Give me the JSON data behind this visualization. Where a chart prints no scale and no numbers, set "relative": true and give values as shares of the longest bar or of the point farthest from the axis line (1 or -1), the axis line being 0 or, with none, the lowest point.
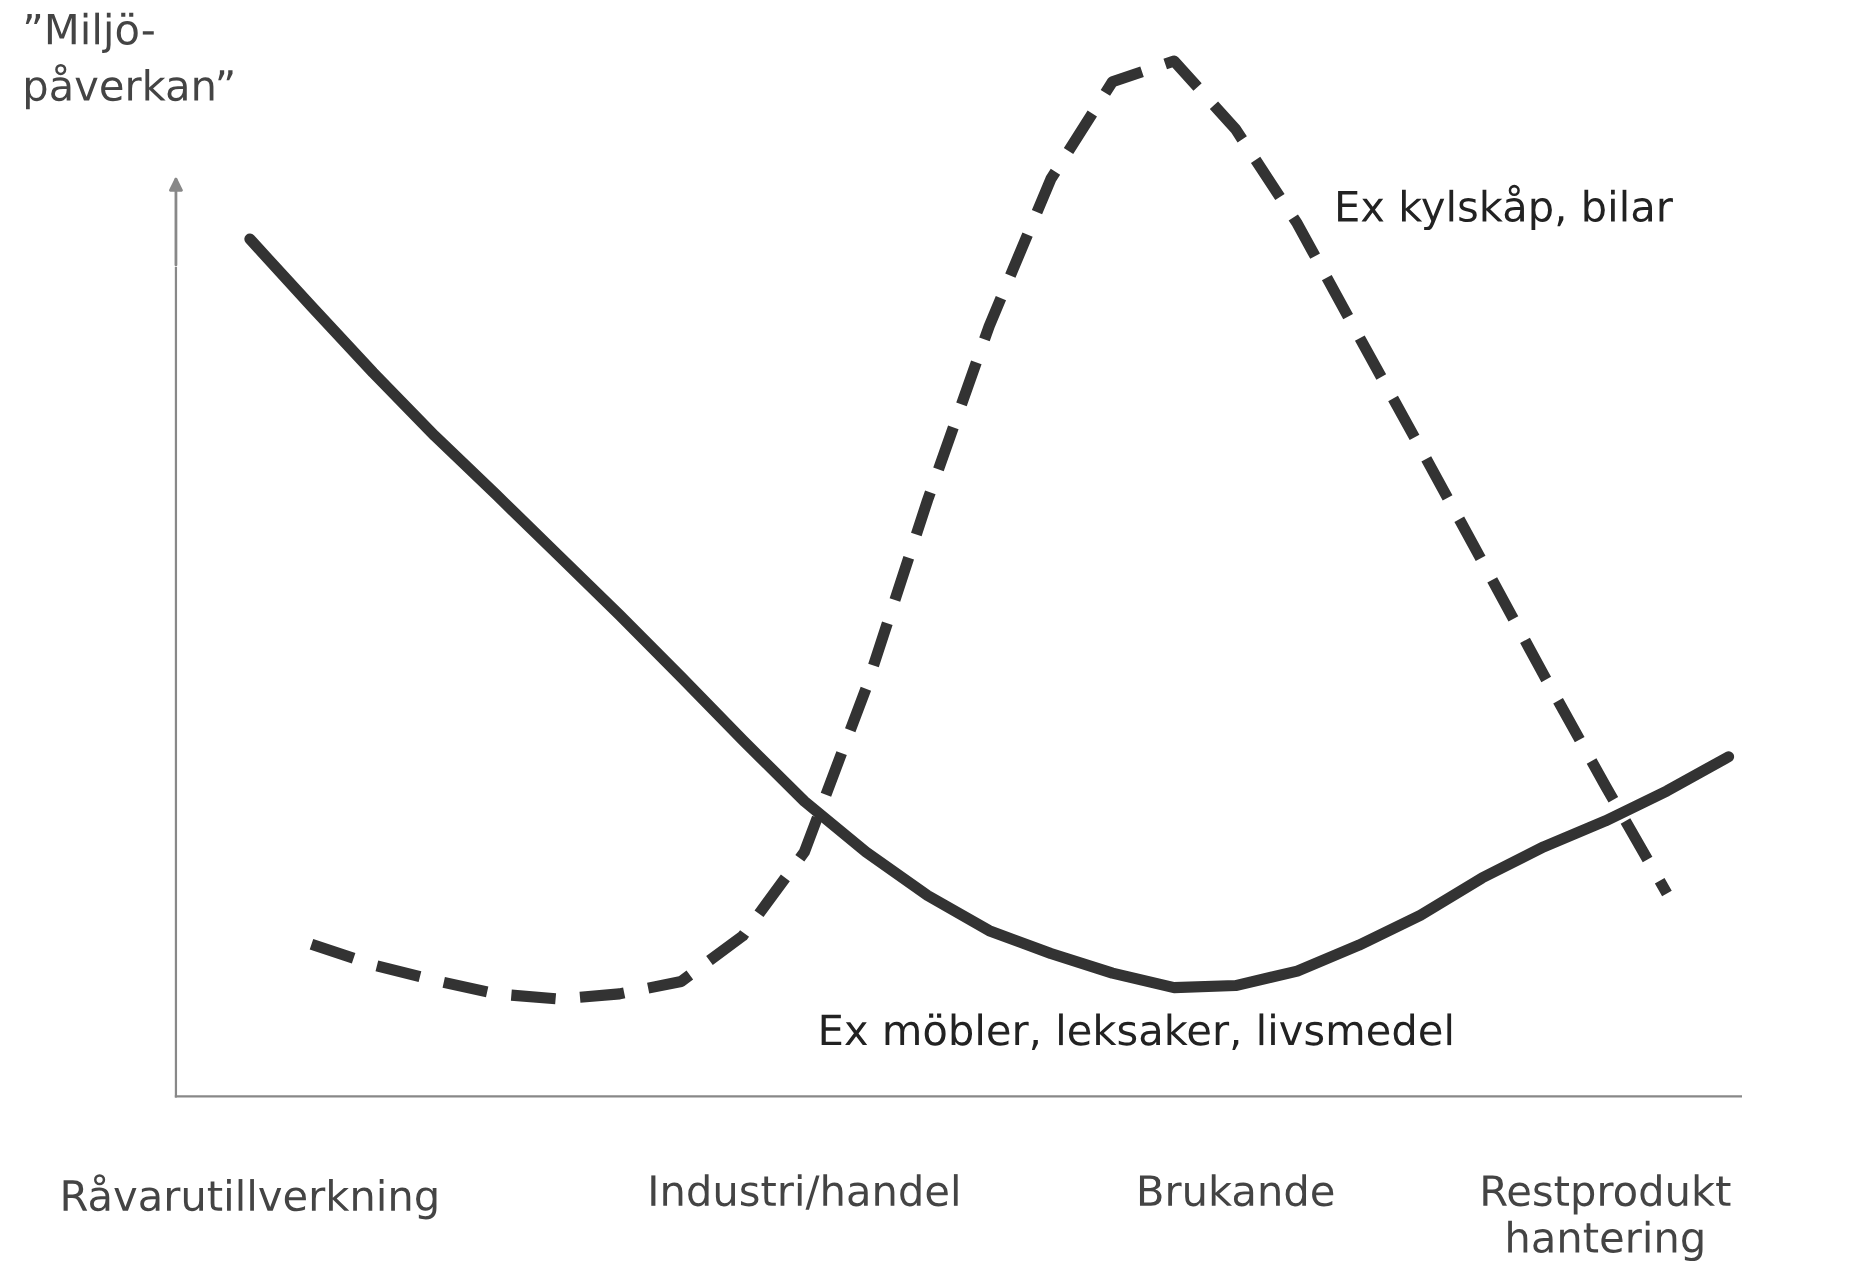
{
  "chart_data": {
    "type": "line",
    "relative": true,
    "ylabel": "”Miljö-\npåverkan”",
    "categories": [
      null,
      "Råvarutillverkning",
      null,
      null,
      null,
      null,
      null,
      null,
      null,
      null,
      "Industri/handel",
      null,
      null,
      null,
      null,
      null,
      null,
      "Brukande",
      null,
      null,
      null,
      null,
      null,
      "Restprodukt\nhantering",
      null,
      null
    ],
    "series": [
      {
        "color": "#333333",
        "line_style": "solid",
        "values": [
          null,
          0.828,
          0.763,
          0.699,
          0.638,
          0.581,
          0.523,
          0.465,
          0.405,
          0.344,
          0.285,
          0.236,
          0.194,
          0.16,
          0.138,
          0.119,
          0.105,
          0.107,
          0.121,
          0.146,
          0.175,
          0.211,
          0.241,
          0.266,
          0.295,
          0.328
        ]
      },
      {
        "color": "#333333",
        "line_style": "dashed",
        "values": [
          null,
          null,
          0.147,
          0.127,
          0.112,
          0.099,
          0.094,
          0.099,
          0.111,
          0.155,
          0.236,
          0.394,
          0.576,
          0.744,
          0.886,
          0.98,
          1.0,
          0.934,
          0.843,
          0.734,
          0.626,
          0.517,
          0.407,
          0.3,
          0.196,
          null
        ]
      }
    ],
    "annotations": [
      "Ex kylskåp, bilar",
      "Ex möbler, leksaker, livsmedel"
    ],
    "grid": false,
    "legend": false,
    "marker": "none"
  }
}
